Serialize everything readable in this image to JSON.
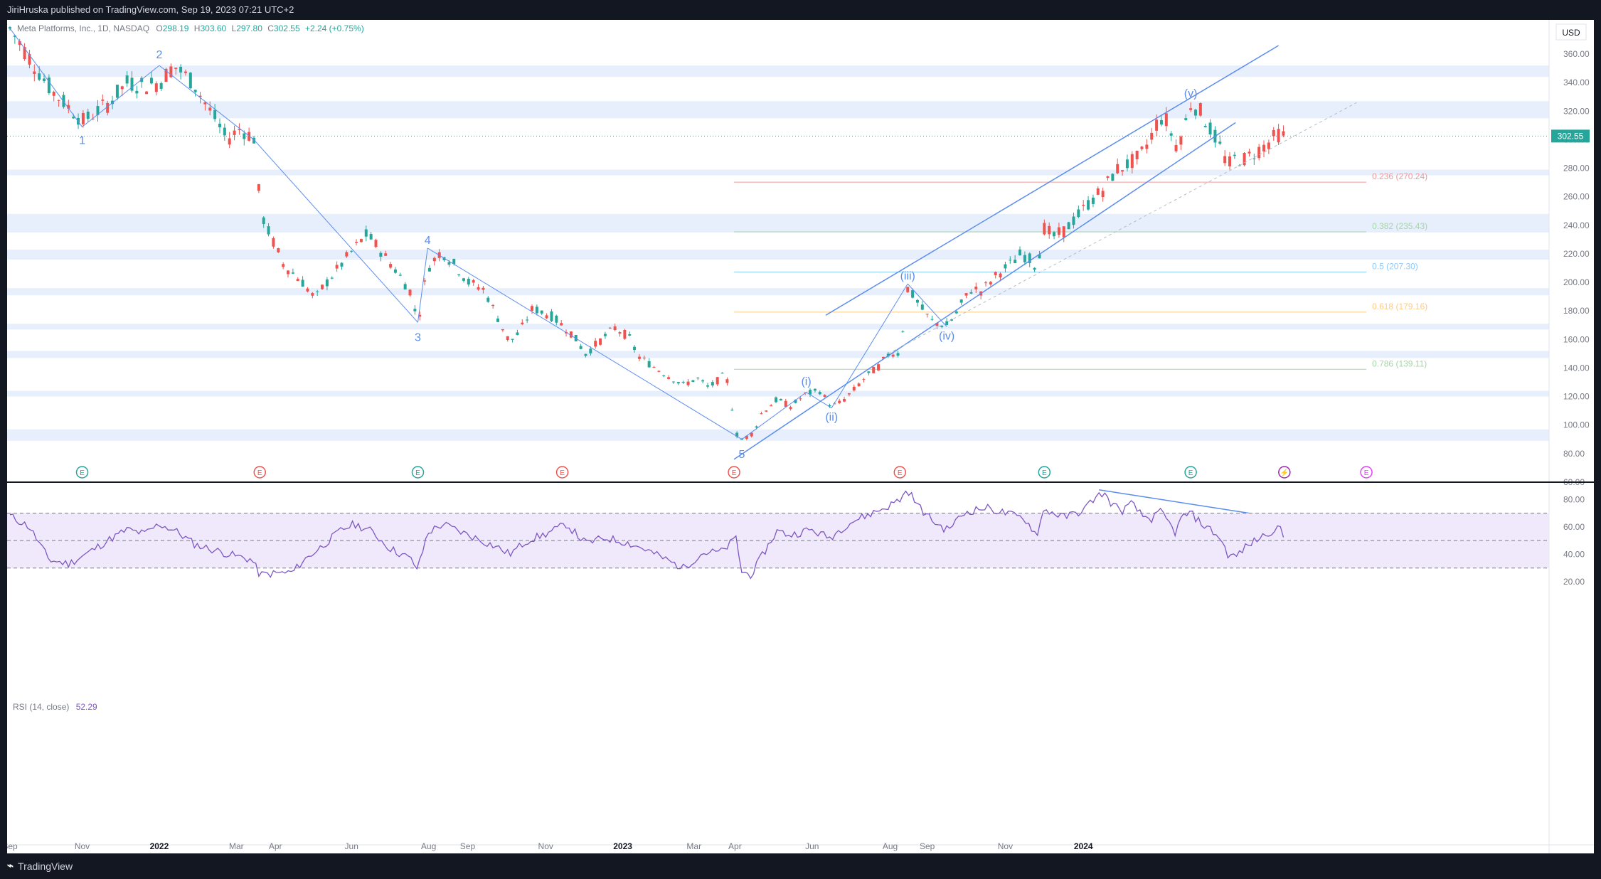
{
  "header": {
    "published": "JiriHruska published on TradingView.com, Sep 19, 2023 07:21 UTC+2"
  },
  "legend": {
    "symbol": "Meta Platforms, Inc., 1D, NASDAQ",
    "open_label": "O",
    "open": "298.19",
    "high_label": "H",
    "high": "303.60",
    "low_label": "L",
    "low": "297.80",
    "close_label": "C",
    "close": "302.55",
    "change": "+2.24 (+0.75%)"
  },
  "currency": "USD",
  "last_price": "302.55",
  "rsi_legend": {
    "label": "RSI (14, close)",
    "value": "52.29"
  },
  "footer": {
    "brand": "TradingView"
  },
  "colors": {
    "up": "#26a69a",
    "down": "#ef5350",
    "wave": "#5b8def",
    "zone": "#e8effc",
    "rsi": "#7e57c2",
    "rsi_band": "#efe9fb",
    "price_tag": "#26a69a"
  },
  "chart_data": [
    {
      "type": "candlestick",
      "title": "",
      "ylim": [
        60,
        370
      ],
      "y_ticks": [
        60,
        80,
        100,
        120,
        140,
        160,
        180,
        200,
        220,
        240,
        260,
        280,
        300,
        320,
        340,
        360
      ],
      "y_tick_labels": [
        "60.00",
        "80.00",
        "100.00",
        "120.00",
        "140.00",
        "160.00",
        "180.00",
        "200.00",
        "220.00",
        "240.00",
        "260.00",
        "280.00",
        "300.00",
        "320.00",
        "340.00",
        "360.00"
      ],
      "x_tick_labels": [
        "Sep",
        "Nov",
        "2022",
        "Mar",
        "Apr",
        "Jun",
        "Aug",
        "Sep",
        "Nov",
        "2023",
        "Mar",
        "Apr",
        "Jun",
        "Aug",
        "Sep",
        "Nov",
        "2024"
      ],
      "x_tick_index": [
        0,
        74,
        153,
        232,
        272,
        350,
        429,
        469,
        549,
        628,
        701,
        743,
        822,
        902,
        940,
        1020,
        1100
      ],
      "price_path": [
        [
          0,
          378
        ],
        [
          42,
          335
        ],
        [
          75,
          313
        ],
        [
          100,
          325
        ],
        [
          120,
          340
        ],
        [
          138,
          338
        ],
        [
          153,
          340
        ],
        [
          168,
          352
        ],
        [
          188,
          340
        ],
        [
          198,
          328
        ],
        [
          210,
          315
        ],
        [
          222,
          300
        ],
        [
          236,
          308
        ],
        [
          246,
          303
        ],
        [
          252,
          300
        ],
        [
          256,
          252
        ],
        [
          262,
          240
        ],
        [
          280,
          213
        ],
        [
          300,
          200
        ],
        [
          313,
          188
        ],
        [
          320,
          196
        ],
        [
          340,
          213
        ],
        [
          353,
          224
        ],
        [
          366,
          234
        ],
        [
          380,
          222
        ],
        [
          396,
          208
        ],
        [
          410,
          194
        ],
        [
          418,
          172
        ],
        [
          428,
          210
        ],
        [
          442,
          222
        ],
        [
          456,
          212
        ],
        [
          470,
          200
        ],
        [
          486,
          195
        ],
        [
          500,
          175
        ],
        [
          512,
          158
        ],
        [
          522,
          165
        ],
        [
          536,
          182
        ],
        [
          556,
          176
        ],
        [
          576,
          164
        ],
        [
          590,
          150
        ],
        [
          606,
          160
        ],
        [
          620,
          168
        ],
        [
          634,
          162
        ],
        [
          644,
          148
        ],
        [
          662,
          140
        ],
        [
          676,
          134
        ],
        [
          690,
          128
        ],
        [
          704,
          133
        ],
        [
          716,
          126
        ],
        [
          730,
          134
        ],
        [
          736,
          130
        ],
        [
          744,
          94
        ],
        [
          750,
          90
        ],
        [
          756,
          92
        ],
        [
          762,
          95
        ],
        [
          770,
          108
        ],
        [
          786,
          118
        ],
        [
          800,
          113
        ],
        [
          816,
          122
        ],
        [
          830,
          124
        ],
        [
          842,
          113
        ],
        [
          852,
          116
        ],
        [
          864,
          124
        ],
        [
          876,
          133
        ],
        [
          890,
          141
        ],
        [
          902,
          151
        ],
        [
          912,
          150
        ],
        [
          920,
          196
        ],
        [
          928,
          188
        ],
        [
          936,
          180
        ],
        [
          944,
          173
        ],
        [
          952,
          171
        ],
        [
          960,
          170
        ],
        [
          968,
          176
        ],
        [
          976,
          186
        ],
        [
          986,
          196
        ],
        [
          996,
          194
        ],
        [
          1004,
          200
        ],
        [
          1014,
          207
        ],
        [
          1026,
          213
        ],
        [
          1036,
          220
        ],
        [
          1044,
          217
        ],
        [
          1052,
          211
        ],
        [
          1060,
          238
        ],
        [
          1070,
          232
        ],
        [
          1080,
          236
        ],
        [
          1092,
          245
        ],
        [
          1106,
          256
        ],
        [
          1120,
          265
        ],
        [
          1134,
          279
        ],
        [
          1146,
          283
        ],
        [
          1158,
          288
        ],
        [
          1168,
          300
        ],
        [
          1178,
          316
        ],
        [
          1186,
          313
        ],
        [
          1194,
          295
        ],
        [
          1202,
          305
        ],
        [
          1210,
          325
        ],
        [
          1218,
          322
        ],
        [
          1228,
          310
        ],
        [
          1238,
          298
        ],
        [
          1248,
          282
        ],
        [
          1256,
          287
        ],
        [
          1264,
          286
        ],
        [
          1276,
          291
        ],
        [
          1288,
          297
        ],
        [
          1300,
          304
        ],
        [
          1306,
          302
        ]
      ]
    },
    {
      "type": "line",
      "title": "RSI (14, close)",
      "ylim": [
        20,
        90
      ],
      "y_ticks": [
        20,
        40,
        60,
        80
      ],
      "y_tick_labels": [
        "20.00",
        "40.00",
        "60.00",
        "80.00"
      ],
      "band": [
        30,
        70
      ],
      "mid": 50,
      "values_path": [
        [
          0,
          68
        ],
        [
          20,
          60
        ],
        [
          40,
          36
        ],
        [
          60,
          33
        ],
        [
          80,
          41
        ],
        [
          100,
          50
        ],
        [
          120,
          58
        ],
        [
          138,
          55
        ],
        [
          153,
          62
        ],
        [
          170,
          57
        ],
        [
          190,
          47
        ],
        [
          210,
          43
        ],
        [
          230,
          39
        ],
        [
          248,
          36
        ],
        [
          256,
          25
        ],
        [
          270,
          26
        ],
        [
          290,
          27
        ],
        [
          300,
          35
        ],
        [
          320,
          46
        ],
        [
          340,
          58
        ],
        [
          353,
          62
        ],
        [
          370,
          57
        ],
        [
          390,
          44
        ],
        [
          410,
          37
        ],
        [
          418,
          29
        ],
        [
          428,
          56
        ],
        [
          444,
          62
        ],
        [
          460,
          57
        ],
        [
          480,
          51
        ],
        [
          500,
          45
        ],
        [
          512,
          40
        ],
        [
          530,
          50
        ],
        [
          550,
          55
        ],
        [
          570,
          62
        ],
        [
          590,
          48
        ],
        [
          610,
          52
        ],
        [
          630,
          49
        ],
        [
          650,
          44
        ],
        [
          670,
          37
        ],
        [
          690,
          30
        ],
        [
          710,
          41
        ],
        [
          730,
          42
        ],
        [
          744,
          52
        ],
        [
          750,
          27
        ],
        [
          760,
          25
        ],
        [
          770,
          38
        ],
        [
          786,
          57
        ],
        [
          800,
          54
        ],
        [
          820,
          58
        ],
        [
          840,
          52
        ],
        [
          860,
          63
        ],
        [
          880,
          69
        ],
        [
          900,
          75
        ],
        [
          912,
          80
        ],
        [
          920,
          87
        ],
        [
          930,
          76
        ],
        [
          940,
          68
        ],
        [
          950,
          62
        ],
        [
          960,
          58
        ],
        [
          980,
          71
        ],
        [
          1000,
          74
        ],
        [
          1020,
          70
        ],
        [
          1040,
          66
        ],
        [
          1052,
          54
        ],
        [
          1060,
          73
        ],
        [
          1080,
          67
        ],
        [
          1100,
          72
        ],
        [
          1110,
          80
        ],
        [
          1120,
          85
        ],
        [
          1130,
          76
        ],
        [
          1140,
          72
        ],
        [
          1150,
          77
        ],
        [
          1160,
          68
        ],
        [
          1170,
          66
        ],
        [
          1180,
          71
        ],
        [
          1194,
          56
        ],
        [
          1202,
          68
        ],
        [
          1210,
          70
        ],
        [
          1220,
          63
        ],
        [
          1230,
          58
        ],
        [
          1240,
          52
        ],
        [
          1248,
          40
        ],
        [
          1256,
          38
        ],
        [
          1264,
          44
        ],
        [
          1276,
          50
        ],
        [
          1288,
          55
        ],
        [
          1300,
          60
        ],
        [
          1306,
          52
        ]
      ]
    }
  ],
  "fib_levels": [
    {
      "label": "0.236 (270.24)",
      "value": 270.24,
      "color": "#ef9a9a"
    },
    {
      "label": "0.382 (235.43)",
      "value": 235.43,
      "color": "#a5d6a7"
    },
    {
      "label": "0.5 (207.30)",
      "value": 207.3,
      "color": "#90caf9"
    },
    {
      "label": "0.618 (179.16)",
      "value": 179.16,
      "color": "#ffcc80"
    },
    {
      "label": "0.786 (139.11)",
      "value": 139.11,
      "color": "#a5d6a7"
    }
  ],
  "zones": [
    [
      344,
      352
    ],
    [
      315,
      327
    ],
    [
      235,
      248
    ],
    [
      216,
      223
    ],
    [
      191,
      196
    ],
    [
      167,
      171
    ],
    [
      147,
      152
    ],
    [
      120,
      124
    ],
    [
      89,
      97
    ],
    [
      275,
      279
    ]
  ],
  "wave_labels": [
    {
      "text": "1",
      "i": 74,
      "v": 301,
      "pos": "below"
    },
    {
      "text": "2",
      "i": 153,
      "v": 356,
      "pos": "above"
    },
    {
      "text": "3",
      "i": 418,
      "v": 163,
      "pos": "below"
    },
    {
      "text": "4",
      "i": 428,
      "v": 226,
      "pos": "above"
    },
    {
      "text": "5",
      "i": 750,
      "v": 81,
      "pos": "below"
    },
    {
      "text": "(i)",
      "i": 816,
      "v": 127,
      "pos": "above"
    },
    {
      "text": "(ii)",
      "i": 842,
      "v": 107,
      "pos": "below"
    },
    {
      "text": "(iii)",
      "i": 920,
      "v": 201,
      "pos": "above"
    },
    {
      "text": "(iv)",
      "i": 960,
      "v": 164,
      "pos": "below"
    },
    {
      "text": "(v)",
      "i": 1210,
      "v": 329,
      "pos": "above"
    }
  ],
  "earnings_markers": [
    {
      "i": 74,
      "text": "E",
      "color": "#26a69a"
    },
    {
      "i": 256,
      "text": "E",
      "color": "#ef5350"
    },
    {
      "i": 418,
      "text": "E",
      "color": "#26a69a"
    },
    {
      "i": 566,
      "text": "E",
      "color": "#ef5350"
    },
    {
      "i": 742,
      "text": "E",
      "color": "#ef5350"
    },
    {
      "i": 912,
      "text": "E",
      "color": "#ef5350"
    },
    {
      "i": 1060,
      "text": "E",
      "color": "#26a69a"
    },
    {
      "i": 1210,
      "text": "E",
      "color": "#26a69a"
    },
    {
      "i": 1306,
      "text": "⚡",
      "color": "#9c27b0"
    },
    {
      "i": 1390,
      "text": "E",
      "color": "#e040fb"
    }
  ]
}
